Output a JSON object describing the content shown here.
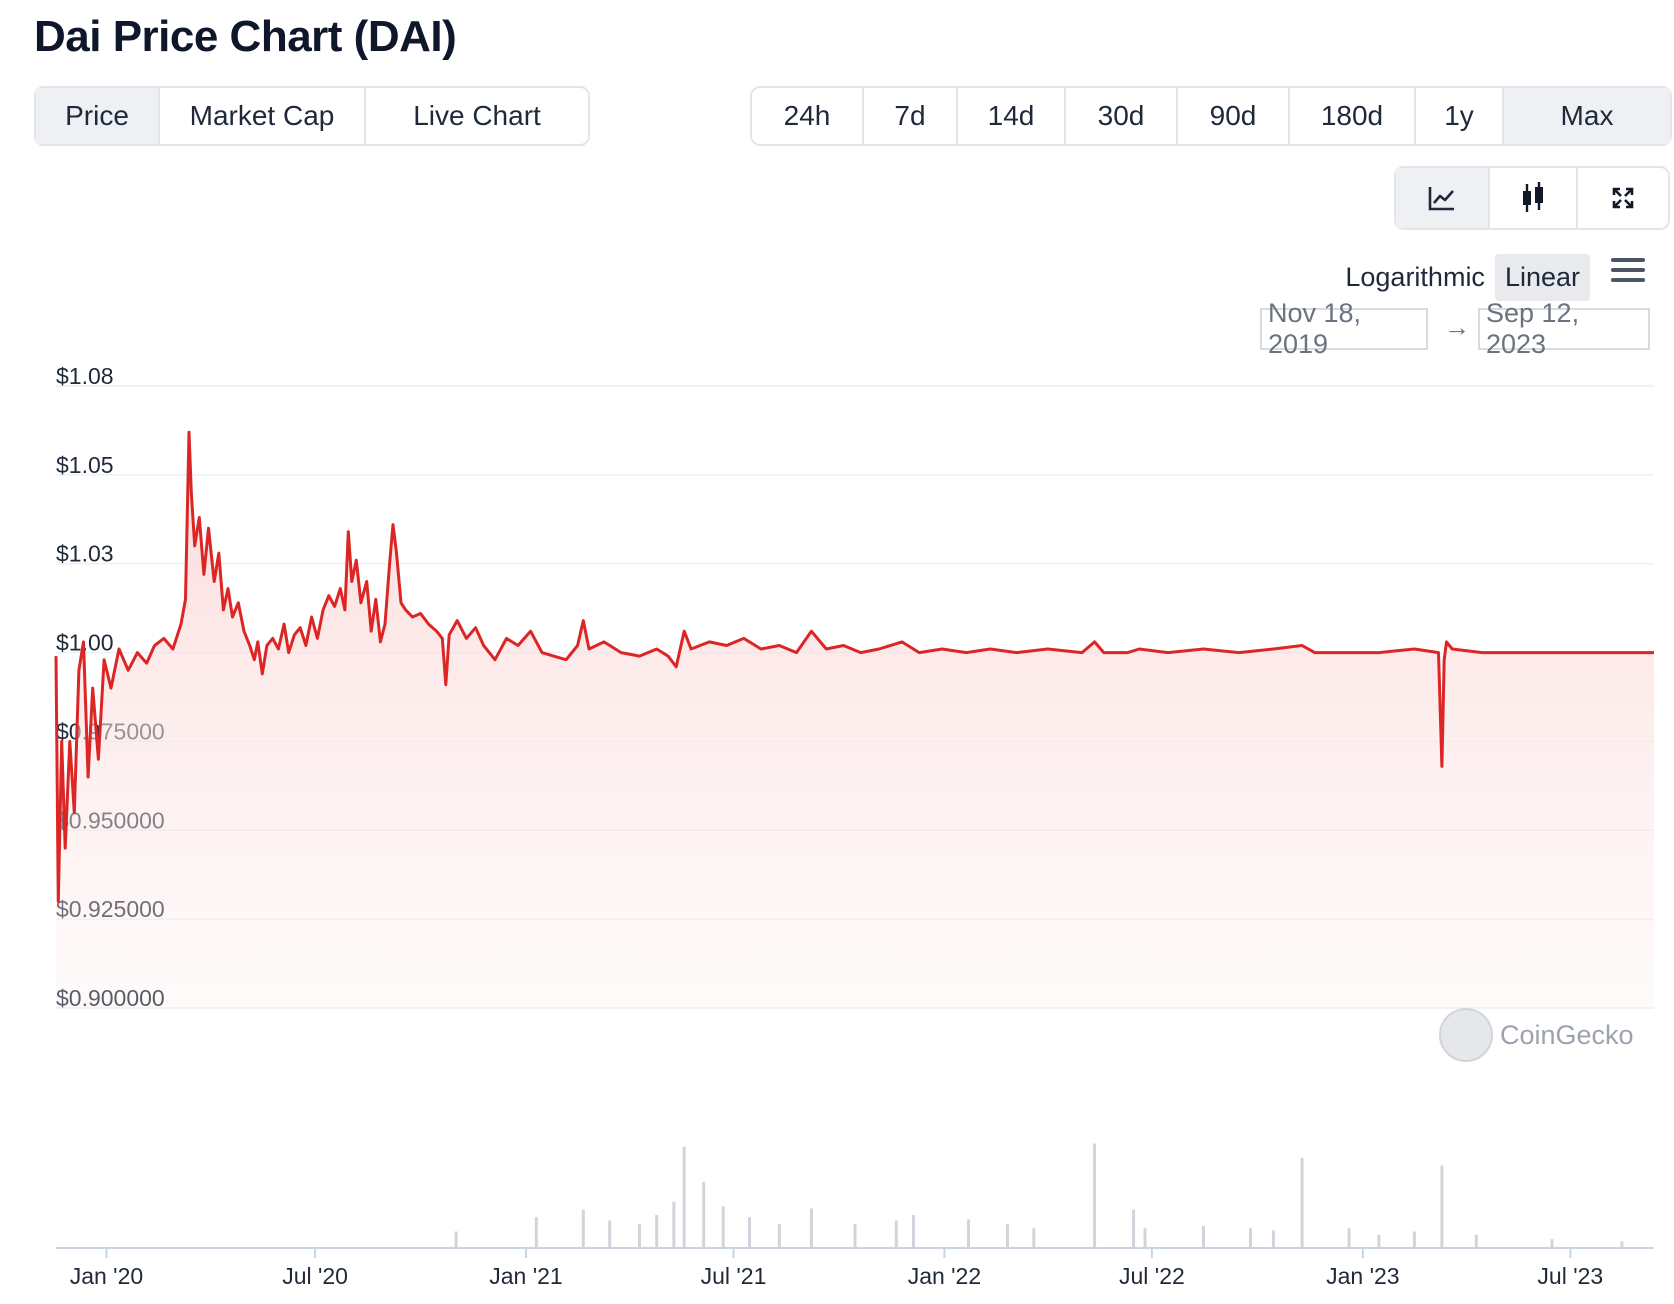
{
  "page_title": "Dai Price Chart (DAI)",
  "view_tabs": [
    {
      "label": "Price",
      "active": true
    },
    {
      "label": "Market Cap",
      "active": false
    },
    {
      "label": "Live Chart",
      "active": false
    }
  ],
  "range_tabs": [
    {
      "label": "24h",
      "active": false
    },
    {
      "label": "7d",
      "active": false
    },
    {
      "label": "14d",
      "active": false
    },
    {
      "label": "30d",
      "active": false
    },
    {
      "label": "90d",
      "active": false
    },
    {
      "label": "180d",
      "active": false
    },
    {
      "label": "1y",
      "active": false
    },
    {
      "label": "Max",
      "active": true
    }
  ],
  "chart_type_icons": [
    {
      "icon": "line-chart-icon",
      "active": true
    },
    {
      "icon": "candlestick-icon",
      "active": false
    },
    {
      "icon": "expand-icon",
      "active": false
    }
  ],
  "scale": {
    "log_label": "Logarithmic",
    "linear_label": "Linear",
    "selected": "Linear"
  },
  "date_range": {
    "from": "Nov 18, 2019",
    "to": "Sep 12, 2023"
  },
  "watermark": "CoinGecko",
  "colors": {
    "line": "#dc2626",
    "area_top": "#fbd5d5",
    "volume": "#d1d5db",
    "grid": "#eceff3",
    "active_bg": "#eef0f3"
  },
  "chart_data": {
    "type": "line",
    "title": "",
    "xlabel": "",
    "ylabel": "",
    "y_ticks": [
      "$1.08",
      "$1.05",
      "$1.03",
      "$1.00",
      "$0.975000",
      "$0.950000",
      "$0.925000",
      "$0.900000"
    ],
    "y_tick_values": [
      1.075,
      1.05,
      1.025,
      1.0,
      0.975,
      0.95,
      0.925,
      0.9
    ],
    "ylim": [
      0.9,
      1.075
    ],
    "x_ticks": [
      {
        "date": "2020-01-01",
        "label": "Jan '20"
      },
      {
        "date": "2020-07-01",
        "label": "Jul '20"
      },
      {
        "date": "2021-01-01",
        "label": "Jan '21"
      },
      {
        "date": "2021-07-01",
        "label": "Jul '21"
      },
      {
        "date": "2022-01-01",
        "label": "Jan '22"
      },
      {
        "date": "2022-07-01",
        "label": "Jul '22"
      },
      {
        "date": "2023-01-01",
        "label": "Jan '23"
      },
      {
        "date": "2023-07-01",
        "label": "Jul '23"
      }
    ],
    "xlim": [
      "2019-11-18",
      "2023-09-12"
    ],
    "grid": true,
    "series": [
      {
        "values": [
          [
            "2019-11-18",
            0.999
          ],
          [
            "2019-11-20",
            0.93
          ],
          [
            "2019-11-23",
            0.975
          ],
          [
            "2019-11-26",
            0.945
          ],
          [
            "2019-11-30",
            0.975
          ],
          [
            "2019-12-04",
            0.955
          ],
          [
            "2019-12-08",
            0.995
          ],
          [
            "2019-12-12",
            1.003
          ],
          [
            "2019-12-16",
            0.965
          ],
          [
            "2019-12-20",
            0.99
          ],
          [
            "2019-12-25",
            0.97
          ],
          [
            "2019-12-30",
            0.998
          ],
          [
            "2020-01-05",
            0.99
          ],
          [
            "2020-01-12",
            1.001
          ],
          [
            "2020-01-20",
            0.995
          ],
          [
            "2020-01-28",
            1.0
          ],
          [
            "2020-02-05",
            0.997
          ],
          [
            "2020-02-12",
            1.002
          ],
          [
            "2020-02-20",
            1.004
          ],
          [
            "2020-02-28",
            1.001
          ],
          [
            "2020-03-06",
            1.008
          ],
          [
            "2020-03-10",
            1.015
          ],
          [
            "2020-03-13",
            1.062
          ],
          [
            "2020-03-15",
            1.045
          ],
          [
            "2020-03-18",
            1.03
          ],
          [
            "2020-03-22",
            1.038
          ],
          [
            "2020-03-26",
            1.022
          ],
          [
            "2020-03-30",
            1.035
          ],
          [
            "2020-04-04",
            1.02
          ],
          [
            "2020-04-08",
            1.028
          ],
          [
            "2020-04-12",
            1.012
          ],
          [
            "2020-04-16",
            1.018
          ],
          [
            "2020-04-20",
            1.01
          ],
          [
            "2020-04-25",
            1.014
          ],
          [
            "2020-04-30",
            1.006
          ],
          [
            "2020-05-05",
            1.002
          ],
          [
            "2020-05-09",
            0.998
          ],
          [
            "2020-05-12",
            1.003
          ],
          [
            "2020-05-16",
            0.994
          ],
          [
            "2020-05-20",
            1.002
          ],
          [
            "2020-05-25",
            1.004
          ],
          [
            "2020-05-30",
            1.001
          ],
          [
            "2020-06-04",
            1.008
          ],
          [
            "2020-06-08",
            1.0
          ],
          [
            "2020-06-13",
            1.005
          ],
          [
            "2020-06-18",
            1.007
          ],
          [
            "2020-06-23",
            1.002
          ],
          [
            "2020-06-28",
            1.01
          ],
          [
            "2020-07-03",
            1.004
          ],
          [
            "2020-07-08",
            1.012
          ],
          [
            "2020-07-13",
            1.016
          ],
          [
            "2020-07-18",
            1.013
          ],
          [
            "2020-07-23",
            1.018
          ],
          [
            "2020-07-27",
            1.012
          ],
          [
            "2020-07-30",
            1.034
          ],
          [
            "2020-08-02",
            1.02
          ],
          [
            "2020-08-06",
            1.026
          ],
          [
            "2020-08-10",
            1.014
          ],
          [
            "2020-08-15",
            1.02
          ],
          [
            "2020-08-19",
            1.006
          ],
          [
            "2020-08-23",
            1.015
          ],
          [
            "2020-08-27",
            1.003
          ],
          [
            "2020-08-31",
            1.008
          ],
          [
            "2020-09-04",
            1.025
          ],
          [
            "2020-09-07",
            1.036
          ],
          [
            "2020-09-10",
            1.028
          ],
          [
            "2020-09-14",
            1.014
          ],
          [
            "2020-09-18",
            1.012
          ],
          [
            "2020-09-24",
            1.01
          ],
          [
            "2020-10-01",
            1.011
          ],
          [
            "2020-10-08",
            1.008
          ],
          [
            "2020-10-15",
            1.006
          ],
          [
            "2020-10-20",
            1.004
          ],
          [
            "2020-10-23",
            0.991
          ],
          [
            "2020-10-26",
            1.005
          ],
          [
            "2020-11-02",
            1.009
          ],
          [
            "2020-11-10",
            1.004
          ],
          [
            "2020-11-18",
            1.007
          ],
          [
            "2020-11-25",
            1.002
          ],
          [
            "2020-12-05",
            0.998
          ],
          [
            "2020-12-15",
            1.004
          ],
          [
            "2020-12-25",
            1.002
          ],
          [
            "2021-01-05",
            1.006
          ],
          [
            "2021-01-15",
            1.0
          ],
          [
            "2021-01-25",
            0.999
          ],
          [
            "2021-02-05",
            0.998
          ],
          [
            "2021-02-15",
            1.002
          ],
          [
            "2021-02-20",
            1.009
          ],
          [
            "2021-02-25",
            1.001
          ],
          [
            "2021-03-10",
            1.003
          ],
          [
            "2021-03-25",
            1.0
          ],
          [
            "2021-04-10",
            0.999
          ],
          [
            "2021-04-25",
            1.001
          ],
          [
            "2021-05-05",
            0.999
          ],
          [
            "2021-05-12",
            0.996
          ],
          [
            "2021-05-19",
            1.006
          ],
          [
            "2021-05-25",
            1.001
          ],
          [
            "2021-06-10",
            1.003
          ],
          [
            "2021-06-25",
            1.002
          ],
          [
            "2021-07-10",
            1.004
          ],
          [
            "2021-07-25",
            1.001
          ],
          [
            "2021-08-10",
            1.002
          ],
          [
            "2021-08-25",
            1.0
          ],
          [
            "2021-09-07",
            1.006
          ],
          [
            "2021-09-20",
            1.001
          ],
          [
            "2021-10-05",
            1.002
          ],
          [
            "2021-10-20",
            1.0
          ],
          [
            "2021-11-05",
            1.001
          ],
          [
            "2021-11-25",
            1.003
          ],
          [
            "2021-12-10",
            1.0
          ],
          [
            "2021-12-30",
            1.001
          ],
          [
            "2022-01-20",
            1.0
          ],
          [
            "2022-02-10",
            1.001
          ],
          [
            "2022-03-05",
            1.0
          ],
          [
            "2022-04-01",
            1.001
          ],
          [
            "2022-05-01",
            1.0
          ],
          [
            "2022-05-12",
            1.003
          ],
          [
            "2022-05-20",
            1.0
          ],
          [
            "2022-06-10",
            1.0
          ],
          [
            "2022-06-20",
            1.001
          ],
          [
            "2022-07-15",
            1.0
          ],
          [
            "2022-08-15",
            1.001
          ],
          [
            "2022-09-15",
            1.0
          ],
          [
            "2022-10-15",
            1.001
          ],
          [
            "2022-11-09",
            1.002
          ],
          [
            "2022-11-20",
            1.0
          ],
          [
            "2022-12-15",
            1.0
          ],
          [
            "2023-01-15",
            1.0
          ],
          [
            "2023-02-15",
            1.001
          ],
          [
            "2023-03-08",
            1.0
          ],
          [
            "2023-03-11",
            0.968
          ],
          [
            "2023-03-13",
            0.998
          ],
          [
            "2023-03-15",
            1.003
          ],
          [
            "2023-03-20",
            1.001
          ],
          [
            "2023-04-15",
            1.0
          ],
          [
            "2023-05-15",
            1.0
          ],
          [
            "2023-06-15",
            1.0
          ],
          [
            "2023-07-15",
            1.0
          ],
          [
            "2023-08-15",
            1.0
          ],
          [
            "2023-09-12",
            1.0
          ]
        ]
      }
    ],
    "volume": {
      "type": "bar",
      "values": [
        [
          "2020-11-01",
          0.15
        ],
        [
          "2021-01-10",
          0.28
        ],
        [
          "2021-02-20",
          0.35
        ],
        [
          "2021-03-15",
          0.25
        ],
        [
          "2021-04-10",
          0.22
        ],
        [
          "2021-04-25",
          0.3
        ],
        [
          "2021-05-10",
          0.42
        ],
        [
          "2021-05-19",
          0.92
        ],
        [
          "2021-06-05",
          0.6
        ],
        [
          "2021-06-22",
          0.38
        ],
        [
          "2021-07-15",
          0.28
        ],
        [
          "2021-08-10",
          0.22
        ],
        [
          "2021-09-07",
          0.36
        ],
        [
          "2021-10-15",
          0.22
        ],
        [
          "2021-11-20",
          0.25
        ],
        [
          "2021-12-05",
          0.3
        ],
        [
          "2022-01-22",
          0.26
        ],
        [
          "2022-02-25",
          0.22
        ],
        [
          "2022-03-20",
          0.18
        ],
        [
          "2022-05-12",
          0.95
        ],
        [
          "2022-06-15",
          0.35
        ],
        [
          "2022-06-25",
          0.18
        ],
        [
          "2022-08-15",
          0.2
        ],
        [
          "2022-09-25",
          0.18
        ],
        [
          "2022-10-15",
          0.16
        ],
        [
          "2022-11-09",
          0.82
        ],
        [
          "2022-12-20",
          0.18
        ],
        [
          "2023-01-15",
          0.12
        ],
        [
          "2023-02-15",
          0.15
        ],
        [
          "2023-03-11",
          0.75
        ],
        [
          "2023-04-10",
          0.12
        ],
        [
          "2023-06-15",
          0.08
        ],
        [
          "2023-08-15",
          0.06
        ]
      ]
    }
  }
}
